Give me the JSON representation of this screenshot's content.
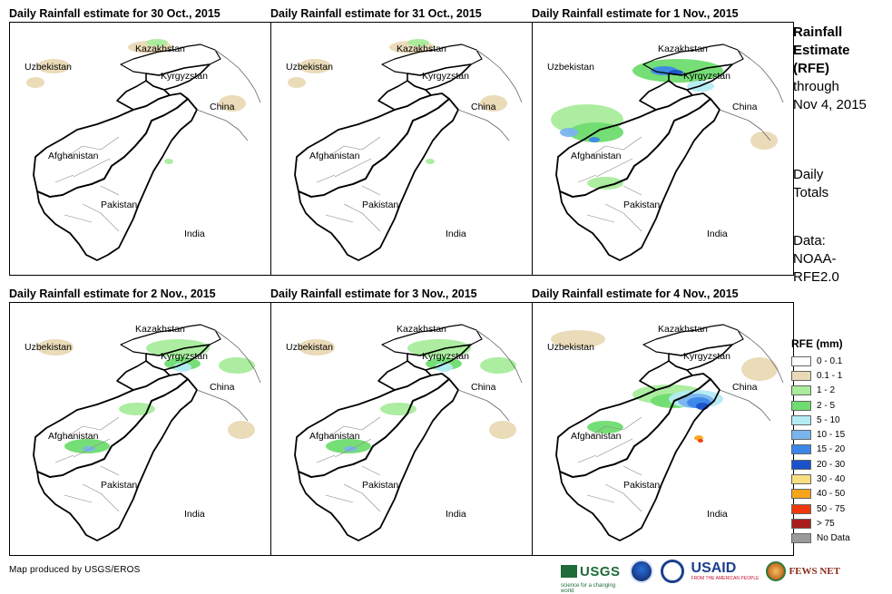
{
  "panels": [
    {
      "title": "Daily Rainfall estimate for 30 Oct., 2015",
      "rain_level": 0
    },
    {
      "title": "Daily Rainfall estimate for 31 Oct., 2015",
      "rain_level": 0
    },
    {
      "title": "Daily Rainfall estimate for 1 Nov., 2015",
      "rain_level": 2
    },
    {
      "title": "Daily Rainfall estimate for 2 Nov., 2015",
      "rain_level": 1
    },
    {
      "title": "Daily Rainfall estimate for 3 Nov., 2015",
      "rain_level": 1
    },
    {
      "title": "Daily Rainfall estimate for 4 Nov., 2015",
      "rain_level": 3
    }
  ],
  "map_labels": {
    "kazakhstan": "Kazakhstan",
    "uzbekistan": "Uzbekistan",
    "kyrgyzstan": "Kyrgyzstan",
    "china": "China",
    "afghanistan": "Afghanistan",
    "pakistan": "Pakistan",
    "india": "India"
  },
  "side": {
    "title_bold": [
      "Rainfall",
      "Estimate",
      "(RFE)"
    ],
    "title_normal": [
      "through",
      "Nov 4, 2015"
    ],
    "daily": [
      "Daily",
      "Totals"
    ],
    "data": [
      "Data:",
      "NOAA-",
      "RFE2.0"
    ]
  },
  "legend": {
    "title": "RFE (mm)",
    "items": [
      {
        "label": "0 - 0.1",
        "color": "#ffffff"
      },
      {
        "label": "0.1 - 1",
        "color": "#e9d9b5"
      },
      {
        "label": "1 - 2",
        "color": "#a8ec9c"
      },
      {
        "label": "2 - 5",
        "color": "#6fdc6f"
      },
      {
        "label": "5 - 10",
        "color": "#b4ecf4"
      },
      {
        "label": "10 - 15",
        "color": "#7ab4ee"
      },
      {
        "label": "15 - 20",
        "color": "#3d86e8"
      },
      {
        "label": "20 - 30",
        "color": "#1a52cc"
      },
      {
        "label": "30 - 40",
        "color": "#f7df80"
      },
      {
        "label": "40 - 50",
        "color": "#f9a51c"
      },
      {
        "label": "50 - 75",
        "color": "#f0380c"
      },
      {
        "label": "> 75",
        "color": "#a81c1c"
      },
      {
        "label": "No Data",
        "color": "#9a9a9a"
      }
    ]
  },
  "credit": "Map produced by USGS/EROS",
  "logos": {
    "usgs": "USGS",
    "usgs_sub": "science for a changing world",
    "usaid": "USAID",
    "usaid_sub": "FROM THE AMERICAN PEOPLE",
    "fews": "FEWS NET"
  }
}
